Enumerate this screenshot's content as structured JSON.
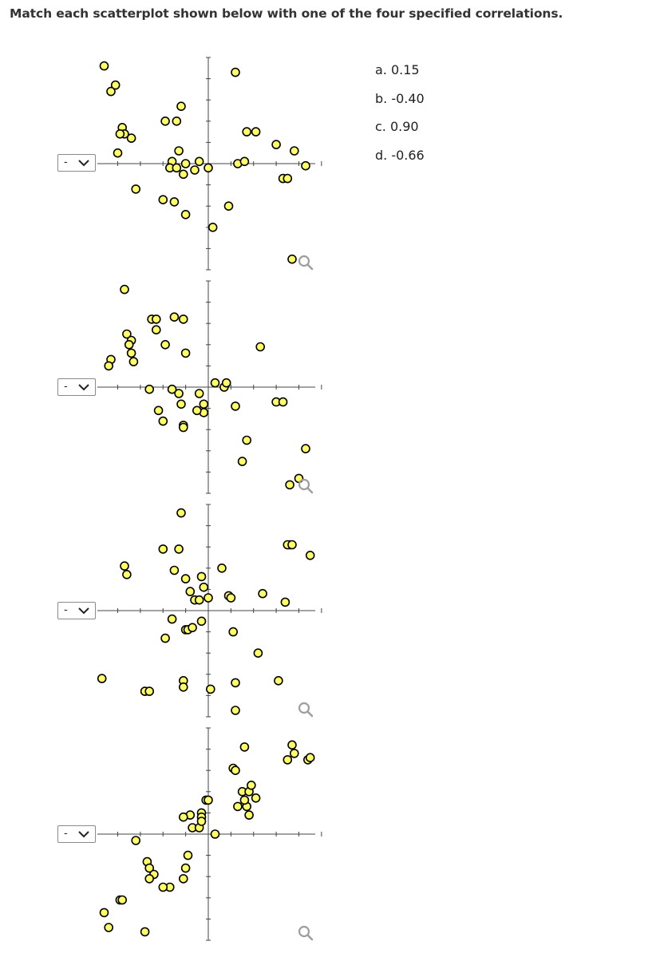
{
  "question": "Match each scatterplot shown below with one of the four specified correlations.",
  "select_placeholder": "-",
  "options": [
    "a. 0.15",
    "b. -0.40",
    "c. 0.90",
    "d. -0.66"
  ],
  "colors": {
    "marker_fill": "#ffff66",
    "marker_stroke": "#000000",
    "axis": "#444444",
    "zoom_icon": "#9e9e9e"
  },
  "icons": {
    "select_arrow": "chevron-down-icon",
    "zoom": "magnifier-icon"
  },
  "chart_data": [
    {
      "type": "scatter",
      "title": "",
      "xlabel": "",
      "ylabel": "",
      "xlim": [
        -4.9,
        5.7
      ],
      "ylim": [
        -5,
        5
      ],
      "x": [
        -4.6,
        -4.1,
        -4.3,
        -3.8,
        -3.7,
        -3.9,
        -3.4,
        -4.0,
        -3.2,
        -1.9,
        -1.4,
        -1.2,
        -1.3,
        -1.6,
        -1.7,
        -1.4,
        -1.1,
        -1.5,
        -1.0,
        -2.0,
        -0.6,
        0.2,
        1.3,
        1.6,
        1.7,
        2.1,
        3.0,
        3.3,
        3.8,
        3.5,
        0.0,
        -1.0,
        1.2,
        0.9,
        -0.4,
        3.7,
        4.3
      ],
      "y": [
        4.6,
        3.7,
        3.4,
        1.7,
        1.4,
        1.4,
        1.2,
        0.5,
        -1.2,
        2.0,
        2.0,
        2.7,
        0.6,
        0.1,
        -0.2,
        -0.2,
        -0.5,
        -1.8,
        -2.4,
        -1.7,
        -0.3,
        -3.0,
        0.0,
        0.1,
        1.5,
        1.5,
        0.9,
        -0.7,
        0.6,
        -0.7,
        -0.2,
        0.0,
        4.3,
        -2.0,
        0.1,
        -4.5,
        -0.1
      ]
    },
    {
      "type": "scatter",
      "title": "",
      "xlabel": "",
      "ylabel": "",
      "xlim": [
        -4.9,
        5.7
      ],
      "ylim": [
        -5,
        5
      ],
      "x": [
        -3.7,
        -4.3,
        -4.4,
        -3.6,
        -3.4,
        -3.5,
        -3.4,
        -3.3,
        -2.5,
        -2.3,
        -2.3,
        -1.9,
        -1.5,
        -1.1,
        -1.3,
        -1.2,
        -1.0,
        -2.6,
        -1.6,
        -2.2,
        -1.1,
        -2.0,
        -1.1,
        -0.4,
        -0.2,
        -0.2,
        -0.5,
        0.3,
        0.7,
        0.8,
        1.2,
        1.7,
        1.5,
        2.3,
        3.0,
        3.3,
        3.6,
        4.0,
        4.3
      ],
      "y": [
        4.6,
        1.3,
        1.0,
        2.5,
        2.2,
        2.0,
        1.6,
        1.2,
        3.2,
        3.2,
        2.7,
        2.0,
        3.3,
        3.2,
        -0.3,
        -0.8,
        1.6,
        -0.1,
        -0.1,
        -1.1,
        -1.8,
        -1.6,
        -1.9,
        -0.3,
        -0.8,
        -1.2,
        -1.1,
        0.2,
        0.0,
        0.2,
        -0.9,
        -2.5,
        -3.5,
        1.9,
        -0.7,
        -0.7,
        -4.6,
        -4.3,
        -2.9
      ]
    },
    {
      "type": "scatter",
      "title": "",
      "xlabel": "",
      "ylabel": "",
      "xlim": [
        -4.9,
        5.7
      ],
      "ylim": [
        -5,
        5
      ],
      "x": [
        -3.7,
        -3.6,
        -4.7,
        -2.8,
        -2.6,
        -2.0,
        -1.3,
        -1.2,
        -1.5,
        -1.0,
        -0.8,
        -0.3,
        -0.2,
        0.0,
        -0.6,
        -0.4,
        -1.6,
        -1.9,
        -1.0,
        -0.9,
        -0.7,
        -0.3,
        -1.1,
        -1.1,
        0.1,
        0.6,
        0.9,
        1.0,
        1.1,
        1.2,
        1.2,
        2.2,
        2.4,
        3.1,
        3.6,
        3.5,
        3.4,
        3.7,
        4.5
      ],
      "y": [
        2.1,
        1.7,
        -3.2,
        -3.8,
        -3.8,
        2.9,
        2.9,
        4.6,
        1.9,
        1.5,
        0.9,
        1.6,
        1.1,
        0.6,
        0.5,
        0.5,
        -0.4,
        -1.3,
        -0.9,
        -0.9,
        -0.8,
        -0.5,
        -3.3,
        -3.6,
        -3.7,
        2.0,
        0.7,
        0.6,
        -1.0,
        -3.4,
        -4.7,
        -2.0,
        0.8,
        -3.3,
        3.1,
        3.1,
        0.4,
        3.1,
        2.6
      ]
    },
    {
      "type": "scatter",
      "title": "",
      "xlabel": "",
      "ylabel": "",
      "xlim": [
        -4.9,
        5.7
      ],
      "ylim": [
        -5,
        5
      ],
      "x": [
        -3.2,
        -4.6,
        -4.4,
        -3.9,
        -3.8,
        -2.8,
        -2.7,
        -2.6,
        -2.4,
        -2.6,
        -1.7,
        -2.0,
        -1.0,
        -1.1,
        -0.9,
        -0.8,
        -1.1,
        -0.7,
        -0.4,
        -0.3,
        -0.3,
        -0.1,
        0.0,
        -0.3,
        0.3,
        1.6,
        1.1,
        1.2,
        1.5,
        1.8,
        1.9,
        1.7,
        1.6,
        1.3,
        1.8,
        2.1,
        3.7,
        3.8,
        3.5,
        4.4,
        4.5
      ],
      "y": [
        -0.3,
        -3.7,
        -4.4,
        -3.1,
        -3.1,
        -4.6,
        -1.3,
        -1.6,
        -1.9,
        -2.1,
        -2.5,
        -2.5,
        -1.6,
        -2.1,
        -1.0,
        0.9,
        0.8,
        0.3,
        0.3,
        1.0,
        0.8,
        1.6,
        1.6,
        0.6,
        0.0,
        4.1,
        3.1,
        3.0,
        2.0,
        2.0,
        2.3,
        1.3,
        1.6,
        1.3,
        0.9,
        1.7,
        4.2,
        3.8,
        3.5,
        3.5,
        3.6
      ]
    }
  ]
}
